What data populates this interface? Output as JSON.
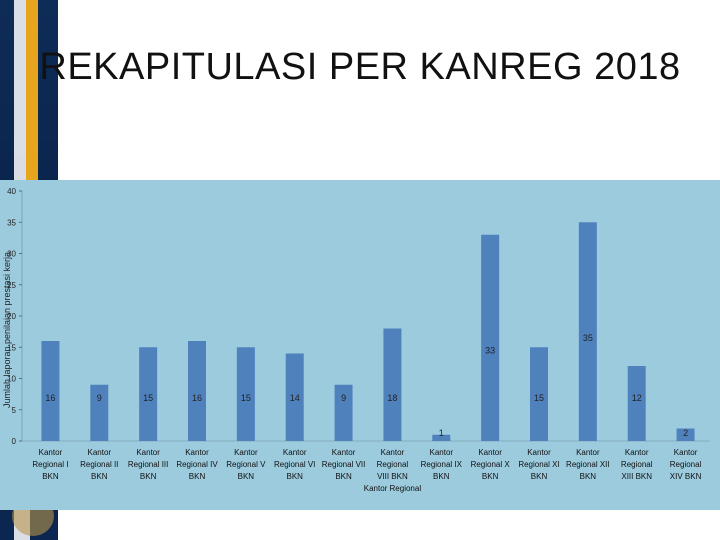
{
  "page": {
    "title": "REKAPITULASI PER KANREG 2018"
  },
  "chart_data": {
    "type": "bar",
    "title": "",
    "ylabel": "Jumlah laporan penilaian prestasi kerja",
    "xlabel": "",
    "ylim": [
      0,
      40
    ],
    "yticks": [
      0,
      5,
      10,
      15,
      20,
      25,
      30,
      35,
      40
    ],
    "grid": false,
    "legend": "none",
    "bar_color": "#4f81bd",
    "categories": [
      "Kantor Regional I BKN",
      "Kantor Regional II BKN",
      "Kantor Regional III BKN",
      "Kantor Regional IV BKN",
      "Kantor Regional V BKN",
      "Kantor Regional VI BKN",
      "Kantor Regional VII BKN",
      "Kantor Regional VIII BKN Kantor Regional",
      "Kantor Regional IX BKN",
      "Kantor Regional X BKN",
      "Kantor Regional XI BKN",
      "Kantor Regional XII BKN",
      "Kantor Regional XIII BKN",
      "Kantor Regional XIV BKN"
    ],
    "category_lines": [
      [
        "Kantor",
        "Regional I",
        "BKN"
      ],
      [
        "Kantor",
        "Regional II",
        "BKN"
      ],
      [
        "Kantor",
        "Regional III",
        "BKN"
      ],
      [
        "Kantor",
        "Regional IV",
        "BKN"
      ],
      [
        "Kantor",
        "Regional V",
        "BKN"
      ],
      [
        "Kantor",
        "Regional VI",
        "BKN"
      ],
      [
        "Kantor",
        "Regional VII",
        "BKN"
      ],
      [
        "Kantor",
        "Regional",
        "VIII BKN",
        "Kantor Regional"
      ],
      [
        "Kantor",
        "Regional IX",
        "BKN"
      ],
      [
        "Kantor",
        "Regional X",
        "BKN"
      ],
      [
        "Kantor",
        "Regional XI",
        "BKN"
      ],
      [
        "Kantor",
        "Regional XII",
        "BKN"
      ],
      [
        "Kantor",
        "Regional",
        "XIII BKN"
      ],
      [
        "Kantor",
        "Regional",
        "XIV BKN"
      ]
    ],
    "values": [
      16,
      9,
      15,
      16,
      15,
      14,
      9,
      18,
      1,
      33,
      15,
      35,
      12,
      2
    ],
    "data_labels": [
      "16",
      "9",
      "15",
      "16",
      "15",
      "14",
      "9",
      "18",
      "1",
      "33",
      "15",
      "35",
      "12",
      "2"
    ]
  }
}
